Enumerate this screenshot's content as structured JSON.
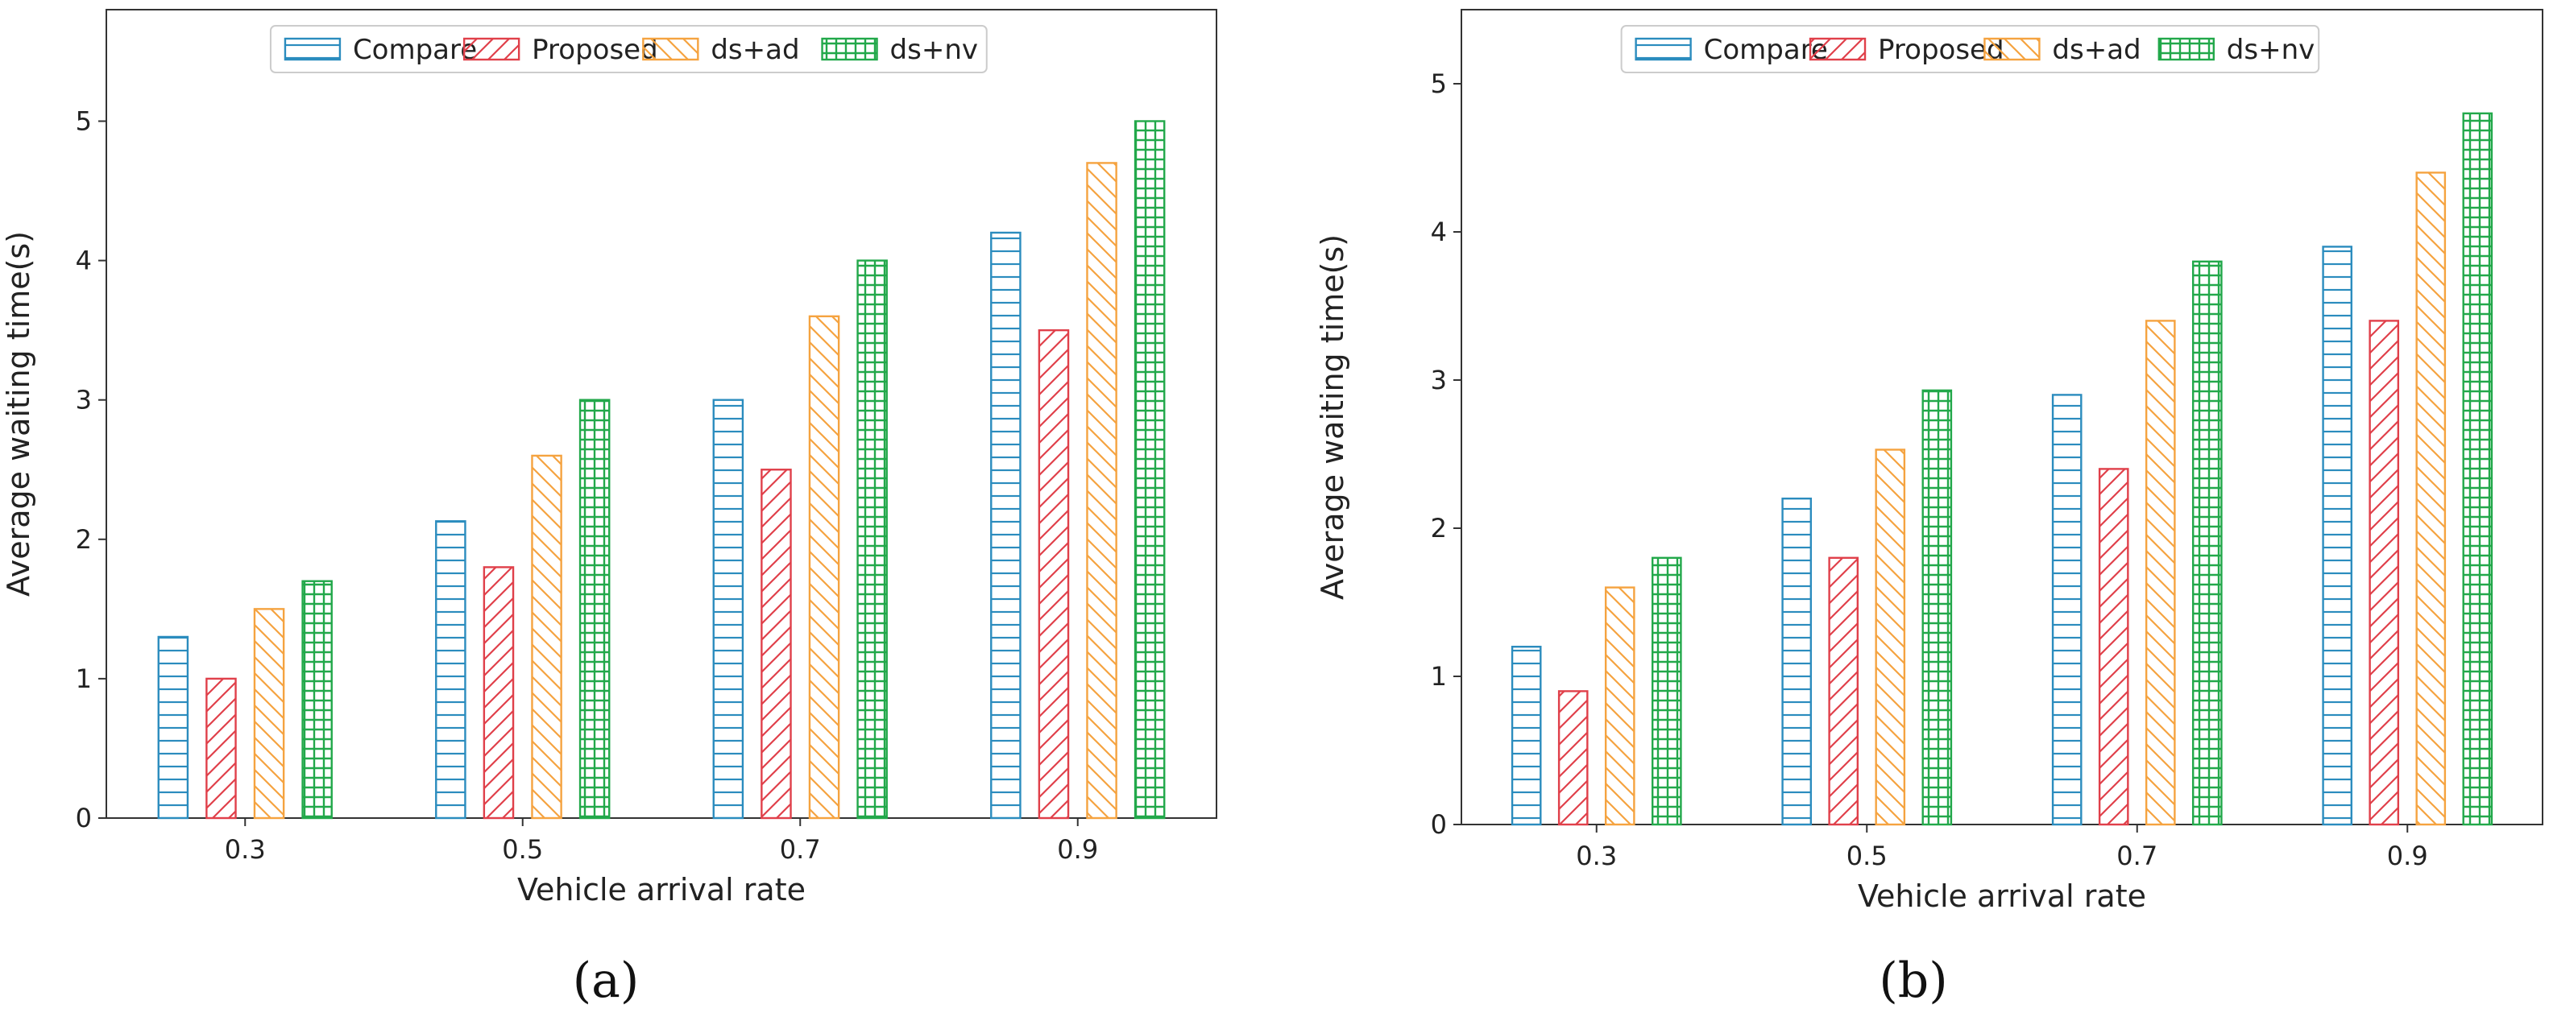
{
  "colors": {
    "Compare": "#2b8cbe",
    "Proposed": "#e0404a",
    "ds+ad": "#f5a340",
    "ds+nv": "#22a84a"
  },
  "chart_data": [
    {
      "type": "bar",
      "panel_label": "(a)",
      "categories": [
        "0.3",
        "0.5",
        "0.7",
        "0.9"
      ],
      "series": [
        {
          "name": "Compare",
          "values": [
            1.3,
            2.13,
            3.0,
            4.2
          ]
        },
        {
          "name": "Proposed",
          "values": [
            1.0,
            1.8,
            2.5,
            3.5
          ]
        },
        {
          "name": "ds+ad",
          "values": [
            1.5,
            2.6,
            3.6,
            4.7
          ]
        },
        {
          "name": "ds+nv",
          "values": [
            1.7,
            3.0,
            4.0,
            5.0
          ]
        }
      ],
      "xlabel": "Vehicle arrival rate",
      "ylabel": "Average waiting time(s)",
      "ylim": [
        0,
        5.8
      ],
      "yticks": [
        "0",
        "1",
        "2",
        "3",
        "4",
        "5"
      ],
      "legend": "top"
    },
    {
      "type": "bar",
      "panel_label": "(b)",
      "categories": [
        "0.3",
        "0.5",
        "0.7",
        "0.9"
      ],
      "series": [
        {
          "name": "Compare",
          "values": [
            1.2,
            2.2,
            2.9,
            3.9
          ]
        },
        {
          "name": "Proposed",
          "values": [
            0.9,
            1.8,
            2.4,
            3.4
          ]
        },
        {
          "name": "ds+ad",
          "values": [
            1.6,
            2.53,
            3.4,
            4.4
          ]
        },
        {
          "name": "ds+nv",
          "values": [
            1.8,
            2.93,
            3.8,
            4.8
          ]
        }
      ],
      "xlabel": "Vehicle arrival rate",
      "ylabel": "Average waiting time(s)",
      "ylim": [
        0,
        5.5
      ],
      "yticks": [
        "0",
        "1",
        "2",
        "3",
        "4",
        "5"
      ],
      "legend": "top"
    }
  ]
}
